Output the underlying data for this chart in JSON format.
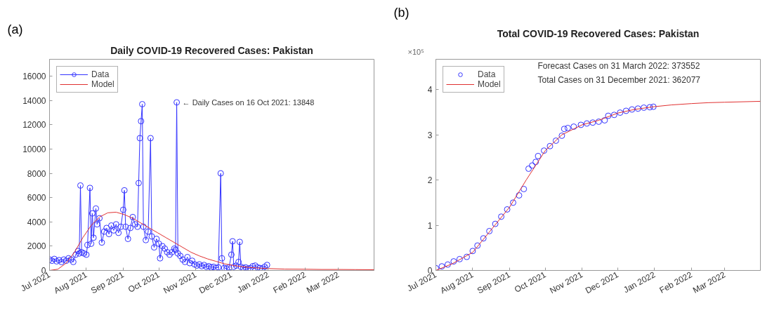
{
  "chart_data": [
    {
      "type": "line",
      "title": "Daily COVID-19 Recovered Cases: Pakistan",
      "annotations": [
        "(a)",
        {
          "text": "← Daily Cases on 16 Oct 2021: 13848",
          "x": "2021-10-16",
          "y": 13848
        }
      ],
      "xlim": [
        "2021-07-01",
        "2022-03-31"
      ],
      "xticks": [
        {
          "value": "2021-07-01",
          "label": "Jul 2021"
        },
        {
          "value": "2021-08-01",
          "label": "Aug 2021"
        },
        {
          "value": "2021-09-01",
          "label": "Sep 2021"
        },
        {
          "value": "2021-10-01",
          "label": "Oct 2021"
        },
        {
          "value": "2021-11-01",
          "label": "Nov 2021"
        },
        {
          "value": "2021-12-01",
          "label": "Dec 2021"
        },
        {
          "value": "2022-01-01",
          "label": "Jan 2022"
        },
        {
          "value": "2022-02-01",
          "label": "Feb 2022"
        },
        {
          "value": "2022-03-01",
          "label": "Mar 2022"
        }
      ],
      "ylim": [
        0,
        17400
      ],
      "yticks": [
        0,
        2000,
        4000,
        6000,
        8000,
        10000,
        12000,
        14000,
        16000
      ],
      "legend": "top left",
      "grid": false,
      "series": [
        {
          "name": "Data",
          "marker": "circle",
          "color": "#3333ff",
          "x": [
            "2021-07-01",
            "2021-07-03",
            "2021-07-05",
            "2021-07-07",
            "2021-07-09",
            "2021-07-11",
            "2021-07-13",
            "2021-07-15",
            "2021-07-17",
            "2021-07-19",
            "2021-07-21",
            "2021-07-23",
            "2021-07-25",
            "2021-07-26",
            "2021-07-27",
            "2021-07-28",
            "2021-07-30",
            "2021-08-01",
            "2021-08-02",
            "2021-08-04",
            "2021-08-05",
            "2021-08-06",
            "2021-08-07",
            "2021-08-09",
            "2021-08-10",
            "2021-08-12",
            "2021-08-14",
            "2021-08-16",
            "2021-08-18",
            "2021-08-20",
            "2021-08-22",
            "2021-08-24",
            "2021-08-26",
            "2021-08-28",
            "2021-08-30",
            "2021-09-01",
            "2021-09-02",
            "2021-09-03",
            "2021-09-05",
            "2021-09-07",
            "2021-09-09",
            "2021-09-11",
            "2021-09-13",
            "2021-09-14",
            "2021-09-15",
            "2021-09-16",
            "2021-09-17",
            "2021-09-18",
            "2021-09-20",
            "2021-09-22",
            "2021-09-24",
            "2021-09-25",
            "2021-09-27",
            "2021-09-29",
            "2021-10-01",
            "2021-10-02",
            "2021-10-04",
            "2021-10-06",
            "2021-10-08",
            "2021-10-10",
            "2021-10-12",
            "2021-10-14",
            "2021-10-15",
            "2021-10-16",
            "2021-10-17",
            "2021-10-19",
            "2021-10-21",
            "2021-10-23",
            "2021-10-25",
            "2021-10-27",
            "2021-10-29",
            "2021-10-31",
            "2021-11-02",
            "2021-11-04",
            "2021-11-06",
            "2021-11-08",
            "2021-11-10",
            "2021-11-12",
            "2021-11-14",
            "2021-11-16",
            "2021-11-18",
            "2021-11-20",
            "2021-11-22",
            "2021-11-23",
            "2021-11-25",
            "2021-11-27",
            "2021-11-29",
            "2021-12-01",
            "2021-12-02",
            "2021-12-03",
            "2021-12-05",
            "2021-12-07",
            "2021-12-08",
            "2021-12-09",
            "2021-12-11",
            "2021-12-13",
            "2021-12-15",
            "2021-12-17",
            "2021-12-19",
            "2021-12-21",
            "2021-12-23",
            "2021-12-25",
            "2021-12-27",
            "2021-12-29",
            "2021-12-31"
          ],
          "values": [
            900,
            800,
            950,
            750,
            850,
            700,
            900,
            800,
            1000,
            900,
            700,
            1300,
            1600,
            1400,
            7000,
            1500,
            1400,
            1300,
            2100,
            6800,
            2200,
            4700,
            2700,
            5100,
            3800,
            4300,
            2300,
            3200,
            3500,
            3000,
            3700,
            3300,
            3800,
            3100,
            3600,
            5000,
            6600,
            3600,
            2600,
            3500,
            4400,
            3800,
            3600,
            7200,
            10900,
            12300,
            13700,
            3600,
            2500,
            3200,
            10900,
            2800,
            1900,
            2600,
            2200,
            1000,
            2000,
            1800,
            1500,
            1300,
            1500,
            1800,
            1700,
            13848,
            1400,
            1200,
            900,
            700,
            1100,
            600,
            800,
            500,
            400,
            500,
            350,
            450,
            300,
            350,
            250,
            300,
            200,
            250,
            8000,
            1000,
            200,
            150,
            250,
            1300,
            2400,
            300,
            400,
            700,
            2350,
            300,
            200,
            250,
            150,
            200,
            350,
            400,
            250,
            200,
            150,
            300,
            450
          ]
        },
        {
          "name": "Model",
          "marker": "none",
          "color": "#e03030",
          "x": [
            "2021-07-01",
            "2021-07-08",
            "2021-07-15",
            "2021-07-22",
            "2021-07-29",
            "2021-08-05",
            "2021-08-12",
            "2021-08-19",
            "2021-08-26",
            "2021-09-02",
            "2021-09-09",
            "2021-09-16",
            "2021-09-23",
            "2021-09-30",
            "2021-10-07",
            "2021-10-14",
            "2021-10-21",
            "2021-10-28",
            "2021-11-04",
            "2021-11-11",
            "2021-11-18",
            "2021-11-25",
            "2021-12-02",
            "2021-12-09",
            "2021-12-16",
            "2021-12-23",
            "2021-12-31",
            "2022-01-15",
            "2022-02-01",
            "2022-02-15",
            "2022-03-01",
            "2022-03-15",
            "2022-03-31"
          ],
          "values": [
            0,
            100,
            600,
            1500,
            2700,
            3700,
            4400,
            4750,
            4800,
            4600,
            4300,
            3900,
            3500,
            3100,
            2700,
            2300,
            1900,
            1500,
            1200,
            950,
            750,
            550,
            420,
            320,
            250,
            200,
            160,
            110,
            100,
            80,
            80,
            70,
            60
          ]
        }
      ]
    },
    {
      "type": "scatter",
      "title": "Total COVID-19 Recovered Cases: Pakistan",
      "annotations": [
        "(b)",
        "×10⁵",
        "Forecast Cases on 31 March 2022: 373552",
        "Total Cases on 31 December 2021: 362077"
      ],
      "xlim": [
        "2021-07-01",
        "2022-03-31"
      ],
      "xticks": [
        {
          "value": "2021-07-01",
          "label": "Jul 2021"
        },
        {
          "value": "2021-08-01",
          "label": "Aug 2021"
        },
        {
          "value": "2021-09-01",
          "label": "Sep 2021"
        },
        {
          "value": "2021-10-01",
          "label": "Oct 2021"
        },
        {
          "value": "2021-11-01",
          "label": "Nov 2021"
        },
        {
          "value": "2021-12-01",
          "label": "Dec 2021"
        },
        {
          "value": "2022-01-01",
          "label": "Jan 2022"
        },
        {
          "value": "2022-02-01",
          "label": "Feb 2022"
        },
        {
          "value": "2022-03-01",
          "label": "Mar 2022"
        }
      ],
      "ylim": [
        0,
        4.67
      ],
      "yticks": [
        0,
        1,
        2,
        3,
        4
      ],
      "legend": "top left",
      "grid": false,
      "series": [
        {
          "name": "Data",
          "marker": "circle",
          "color": "#3333ff",
          "x": [
            "2021-07-01",
            "2021-07-06",
            "2021-07-11",
            "2021-07-16",
            "2021-07-21",
            "2021-07-27",
            "2021-08-01",
            "2021-08-05",
            "2021-08-10",
            "2021-08-15",
            "2021-08-20",
            "2021-08-25",
            "2021-08-30",
            "2021-09-04",
            "2021-09-09",
            "2021-09-13",
            "2021-09-17",
            "2021-09-20",
            "2021-09-23",
            "2021-09-25",
            "2021-09-30",
            "2021-10-05",
            "2021-10-10",
            "2021-10-15",
            "2021-10-17",
            "2021-10-20",
            "2021-10-25",
            "2021-10-31",
            "2021-11-05",
            "2021-11-10",
            "2021-11-15",
            "2021-11-20",
            "2021-11-23",
            "2021-11-28",
            "2021-12-03",
            "2021-12-08",
            "2021-12-13",
            "2021-12-18",
            "2021-12-23",
            "2021-12-28",
            "2021-12-31"
          ],
          "values": [
            0.05,
            0.09,
            0.13,
            0.2,
            0.25,
            0.3,
            0.43,
            0.55,
            0.71,
            0.87,
            1.03,
            1.19,
            1.35,
            1.5,
            1.66,
            1.8,
            2.25,
            2.32,
            2.4,
            2.53,
            2.65,
            2.75,
            2.87,
            2.98,
            3.13,
            3.15,
            3.18,
            3.22,
            3.25,
            3.27,
            3.29,
            3.32,
            3.42,
            3.44,
            3.49,
            3.53,
            3.56,
            3.58,
            3.6,
            3.61,
            3.62
          ]
        },
        {
          "name": "Model",
          "type": "line",
          "marker": "none",
          "color": "#e03030",
          "x": [
            "2021-07-01",
            "2021-07-15",
            "2021-08-01",
            "2021-08-15",
            "2021-09-01",
            "2021-09-15",
            "2021-10-01",
            "2021-10-15",
            "2021-11-01",
            "2021-11-15",
            "2021-12-01",
            "2021-12-15",
            "2021-12-31",
            "2022-01-15",
            "2022-02-01",
            "2022-02-15",
            "2022-03-01",
            "2022-03-31"
          ],
          "values": [
            0,
            0.15,
            0.4,
            0.85,
            1.4,
            2.0,
            2.65,
            3.0,
            3.22,
            3.32,
            3.48,
            3.56,
            3.62,
            3.66,
            3.69,
            3.71,
            3.72,
            3.74
          ]
        }
      ]
    }
  ]
}
